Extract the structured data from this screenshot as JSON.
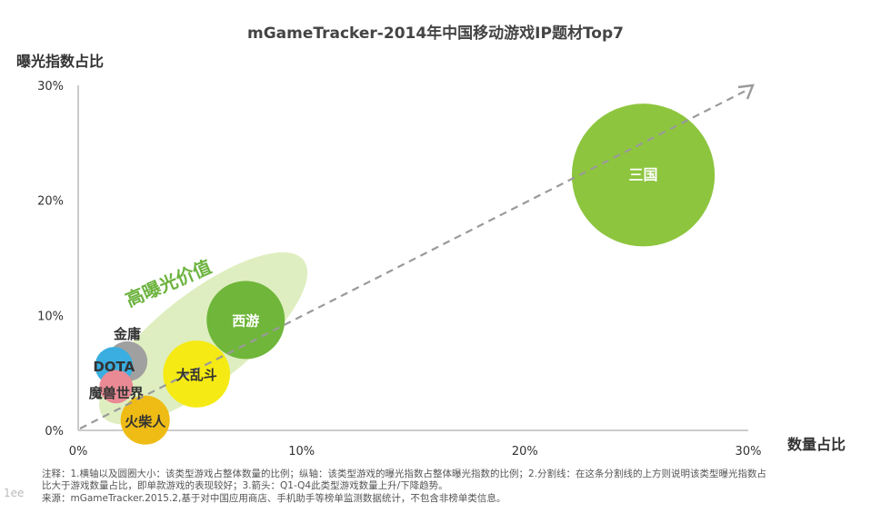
{
  "chart_data": {
    "type": "bubble",
    "title": "mGameTracker-2014年中国移动游戏IP题材Top7",
    "xlabel": "数量占比",
    "ylabel": "曝光指数占比",
    "xlim": [
      0,
      30
    ],
    "ylim": [
      0,
      30
    ],
    "x_ticks": [
      "0%",
      "10%",
      "20%",
      "30%"
    ],
    "y_ticks": [
      "0%",
      "10%",
      "20%",
      "30%"
    ],
    "points": [
      {
        "name": "三国",
        "x": 25.3,
        "y": 22.2,
        "size": 6.4,
        "color": "#8dc53e",
        "label_color": "#ffffff"
      },
      {
        "name": "西游",
        "x": 7.5,
        "y": 9.6,
        "size": 3.5,
        "color": "#6fb63a",
        "label_color": "#ffffff"
      },
      {
        "name": "大乱斗",
        "x": 5.3,
        "y": 4.9,
        "size": 3.0,
        "color": "#f5ea14",
        "label_color": "#333333"
      },
      {
        "name": "金庸",
        "x": 2.2,
        "y": 6.0,
        "size": 1.8,
        "color": "#a0a0a0",
        "label_color": "#333333"
      },
      {
        "name": "DOTA",
        "x": 1.6,
        "y": 5.6,
        "size": 1.7,
        "color": "#3aaee0",
        "label_color": "#333333"
      },
      {
        "name": "魔兽世界",
        "x": 1.7,
        "y": 3.8,
        "size": 1.5,
        "color": "#e98a94",
        "label_color": "#333333"
      },
      {
        "name": "火柴人",
        "x": 3.0,
        "y": 0.9,
        "size": 2.2,
        "color": "#efbc15",
        "label_color": "#333333"
      }
    ],
    "annotation": "高曝光价值",
    "trend_arrow": true,
    "grid": false
  },
  "notes": {
    "line1": "注释：1.横轴以及圆圈大小：该类型游戏占整体数量的比例；纵轴：该类型游戏的曝光指数占整体曝光指数的比例；2.分割线：在这条分割线的上方则说明该类型曝光指数占",
    "line2": "比大于游戏数量占比，即单款游戏的表现较好；3.箭头：Q1-Q4此类型游戏数量上升/下降趋势。",
    "line3": "来源：mGameTracker.2015.2,基于对中国应用商店、手机助手等榜单监测数据统计，不包含非榜单类信息。"
  },
  "watermark": "1ee"
}
